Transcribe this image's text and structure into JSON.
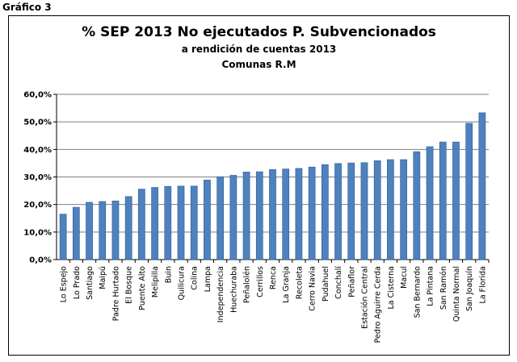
{
  "figure_label": "Gráfico 3",
  "chart_data": {
    "type": "bar",
    "title": "% SEP 2013 No ejecutados P. Subvencionados",
    "subtitle": "a rendición de cuentas 2013",
    "subtitle2": "Comunas R.M",
    "categories": [
      "Lo Espejo",
      "Lo Prado",
      "Santiago",
      "Maipú",
      "Padre Hurtado",
      "El Bosque",
      "Puente Alto",
      "Melipilla",
      "Buin",
      "Quilicura",
      "Colina",
      "Lampa",
      "Independencia",
      "Huechuraba",
      "Peñalolén",
      "Cerrillos",
      "Renca",
      "La Granja",
      "Recoleta",
      "Cerro Navia",
      "Pudahuel",
      "Conchalí",
      "Peñaflor",
      "Estación Central",
      "Pedro Aguirre Cerda",
      "La Cisterna",
      "Macul",
      "San Bernardo",
      "La Pintana",
      "San Ramón",
      "Quinta Normal",
      "San Joaquín",
      "La Florida"
    ],
    "values": [
      16.5,
      19.0,
      20.8,
      21.1,
      21.3,
      22.9,
      25.6,
      26.2,
      26.6,
      26.7,
      26.7,
      28.9,
      30.1,
      30.6,
      31.8,
      31.9,
      32.7,
      32.9,
      33.1,
      33.6,
      34.5,
      34.9,
      35.1,
      35.2,
      35.9,
      36.3,
      36.3,
      39.2,
      41.0,
      42.7,
      42.7,
      49.5,
      53.3
    ],
    "ylim": [
      0,
      60
    ],
    "yticks": [
      "0,0%",
      "10,0%",
      "20,0%",
      "30,0%",
      "40,0%",
      "50,0%",
      "60,0%"
    ],
    "grid": true,
    "colors": {
      "bar": "#4f81bd",
      "bar_edge": "#2c5d96",
      "grid": "#7f7f7f"
    }
  }
}
